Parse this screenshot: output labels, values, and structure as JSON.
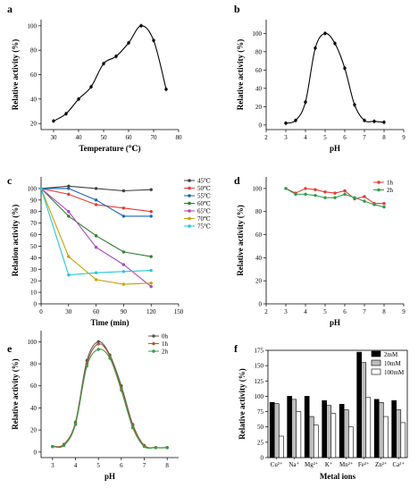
{
  "chart_data": [
    {
      "panel": "a",
      "type": "line",
      "xlabel": "Temperature (℃)",
      "ylabel": "Relative activity (%)",
      "xlim": [
        25,
        80
      ],
      "ylim": [
        15,
        105
      ],
      "xticks": [
        30,
        40,
        50,
        60,
        70,
        80
      ],
      "yticks": [
        20,
        40,
        60,
        80,
        100
      ],
      "series": [
        {
          "color": "#000000",
          "smooth": true,
          "error_bars": true,
          "points": [
            [
              30,
              22
            ],
            [
              35,
              28
            ],
            [
              40,
              40
            ],
            [
              45,
              50
            ],
            [
              50,
              69
            ],
            [
              55,
              75
            ],
            [
              60,
              86
            ],
            [
              65,
              100
            ],
            [
              70,
              88
            ],
            [
              75,
              48
            ]
          ]
        }
      ]
    },
    {
      "panel": "b",
      "type": "line",
      "xlabel": "pH",
      "ylabel": "Relative activity (%)",
      "xlim": [
        2,
        9
      ],
      "ylim": [
        -5,
        115
      ],
      "xticks": [
        2,
        3,
        4,
        5,
        6,
        7,
        8,
        9
      ],
      "yticks": [
        0,
        20,
        40,
        60,
        80,
        100
      ],
      "series": [
        {
          "color": "#000000",
          "smooth": true,
          "error_bars": true,
          "points": [
            [
              3,
              2
            ],
            [
              3.5,
              5
            ],
            [
              4,
              25
            ],
            [
              4.5,
              84
            ],
            [
              5,
              100
            ],
            [
              5.5,
              89
            ],
            [
              6,
              62
            ],
            [
              6.5,
              22
            ],
            [
              7,
              5
            ],
            [
              7.5,
              4
            ],
            [
              8,
              3
            ]
          ]
        }
      ]
    },
    {
      "panel": "c",
      "type": "line",
      "xlabel": "Time (min)",
      "ylabel": "Relation activity (%)",
      "xlim": [
        0,
        150
      ],
      "ylim": [
        0,
        110
      ],
      "xticks": [
        0,
        30,
        60,
        90,
        120,
        150
      ],
      "yticks": [
        0,
        10,
        20,
        30,
        40,
        50,
        60,
        70,
        80,
        90,
        100
      ],
      "legend_position": "right",
      "series": [
        {
          "name": "45℃",
          "color": "#404040",
          "points": [
            [
              0,
              100
            ],
            [
              30,
              102
            ],
            [
              60,
              100
            ],
            [
              90,
              98
            ],
            [
              120,
              99
            ]
          ]
        },
        {
          "name": "50℃",
          "color": "#e53935",
          "points": [
            [
              0,
              100
            ],
            [
              30,
              95
            ],
            [
              60,
              86
            ],
            [
              90,
              83
            ],
            [
              120,
              80
            ]
          ]
        },
        {
          "name": "55℃",
          "color": "#1565c0",
          "points": [
            [
              0,
              100
            ],
            [
              30,
              100
            ],
            [
              60,
              90
            ],
            [
              90,
              76
            ],
            [
              120,
              76
            ]
          ]
        },
        {
          "name": "60℃",
          "color": "#2e7d32",
          "points": [
            [
              0,
              100
            ],
            [
              30,
              76
            ],
            [
              60,
              59
            ],
            [
              90,
              45
            ],
            [
              120,
              41
            ]
          ]
        },
        {
          "name": "65℃",
          "color": "#ab47bc",
          "points": [
            [
              0,
              100
            ],
            [
              30,
              80
            ],
            [
              60,
              49
            ],
            [
              90,
              34
            ],
            [
              120,
              15
            ]
          ]
        },
        {
          "name": "70℃",
          "color": "#c8a000",
          "points": [
            [
              0,
              100
            ],
            [
              30,
              41
            ],
            [
              60,
              21
            ],
            [
              90,
              17
            ],
            [
              120,
              18
            ]
          ]
        },
        {
          "name": "75℃",
          "color": "#26c6da",
          "points": [
            [
              0,
              100
            ],
            [
              30,
              25
            ],
            [
              60,
              27
            ],
            [
              90,
              28
            ],
            [
              120,
              29
            ]
          ]
        }
      ]
    },
    {
      "panel": "d",
      "type": "line",
      "xlabel": "pH",
      "ylabel": "Relative activity (%)",
      "xlim": [
        2,
        9
      ],
      "ylim": [
        0,
        110
      ],
      "xticks": [
        2,
        3,
        4,
        5,
        6,
        7,
        8,
        9
      ],
      "yticks": [
        0,
        20,
        40,
        60,
        80,
        100
      ],
      "legend_position": "top-right",
      "series": [
        {
          "name": "1h",
          "color": "#e53935",
          "points": [
            [
              3,
              100
            ],
            [
              3.5,
              96
            ],
            [
              4,
              100
            ],
            [
              4.5,
              99
            ],
            [
              5,
              97
            ],
            [
              5.5,
              96
            ],
            [
              6,
              98
            ],
            [
              6.5,
              91
            ],
            [
              7,
              93
            ],
            [
              7.5,
              87
            ],
            [
              8,
              87
            ]
          ]
        },
        {
          "name": "2h",
          "color": "#2e9d4a",
          "points": [
            [
              3,
              100
            ],
            [
              3.5,
              95
            ],
            [
              4,
              95
            ],
            [
              4.5,
              94
            ],
            [
              5,
              92
            ],
            [
              5.5,
              92
            ],
            [
              6,
              95
            ],
            [
              6.5,
              92
            ],
            [
              7,
              89
            ],
            [
              7.5,
              86
            ],
            [
              8,
              84
            ]
          ]
        }
      ]
    },
    {
      "panel": "e",
      "type": "line",
      "xlabel": "pH",
      "ylabel": "Relative activity (%)",
      "xlim": [
        2.5,
        8.5
      ],
      "ylim": [
        -5,
        110
      ],
      "xticks": [
        3,
        4,
        5,
        6,
        7,
        8
      ],
      "yticks": [
        0,
        20,
        40,
        60,
        80,
        100
      ],
      "legend_position": "top-right",
      "series": [
        {
          "name": "0h",
          "color": "#555555",
          "smooth": true,
          "points": [
            [
              3,
              5
            ],
            [
              3.5,
              7
            ],
            [
              4,
              27
            ],
            [
              4.5,
              83
            ],
            [
              5,
              100
            ],
            [
              5.5,
              88
            ],
            [
              6,
              60
            ],
            [
              6.5,
              25
            ],
            [
              7,
              6
            ],
            [
              7.5,
              4
            ],
            [
              8,
              4
            ]
          ]
        },
        {
          "name": "1h",
          "color": "#b5542f",
          "smooth": true,
          "points": [
            [
              3,
              5
            ],
            [
              3.5,
              7
            ],
            [
              4,
              26
            ],
            [
              4.5,
              80
            ],
            [
              5,
              98
            ],
            [
              5.5,
              87
            ],
            [
              6,
              58
            ],
            [
              6.5,
              24
            ],
            [
              7,
              6
            ],
            [
              7.5,
              4
            ],
            [
              8,
              4
            ]
          ]
        },
        {
          "name": "2h",
          "color": "#3c9a4a",
          "smooth": true,
          "points": [
            [
              3,
              5
            ],
            [
              3.5,
              6
            ],
            [
              4,
              25
            ],
            [
              4.5,
              78
            ],
            [
              5,
              93
            ],
            [
              5.5,
              85
            ],
            [
              6,
              56
            ],
            [
              6.5,
              22
            ],
            [
              7,
              5
            ],
            [
              7.5,
              4
            ],
            [
              8,
              4
            ]
          ]
        }
      ]
    },
    {
      "panel": "f",
      "type": "bar",
      "xlabel": "Metal ions",
      "ylabel": "Relative activity (%)",
      "ylim": [
        0,
        175
      ],
      "yticks": [
        0,
        25,
        50,
        75,
        100,
        125,
        150,
        175
      ],
      "categories": [
        "Cu²⁺",
        "Na⁺",
        "Mg²⁺",
        "K⁺",
        "Mn²⁺",
        "Fe³⁺",
        "Zn²⁺",
        "Ca²⁺"
      ],
      "legend_position": "top-right",
      "series": [
        {
          "name": "2mM",
          "color": "#000000",
          "values": [
            90,
            100,
            100,
            93,
            87,
            172,
            95,
            93
          ]
        },
        {
          "name": "10mM",
          "color": "#bdbdbd",
          "values": [
            88,
            95,
            67,
            85,
            78,
            155,
            90,
            78
          ]
        },
        {
          "name": "100mM",
          "color": "#ffffff",
          "values": [
            35,
            75,
            53,
            72,
            50,
            98,
            67,
            57
          ]
        }
      ]
    }
  ]
}
